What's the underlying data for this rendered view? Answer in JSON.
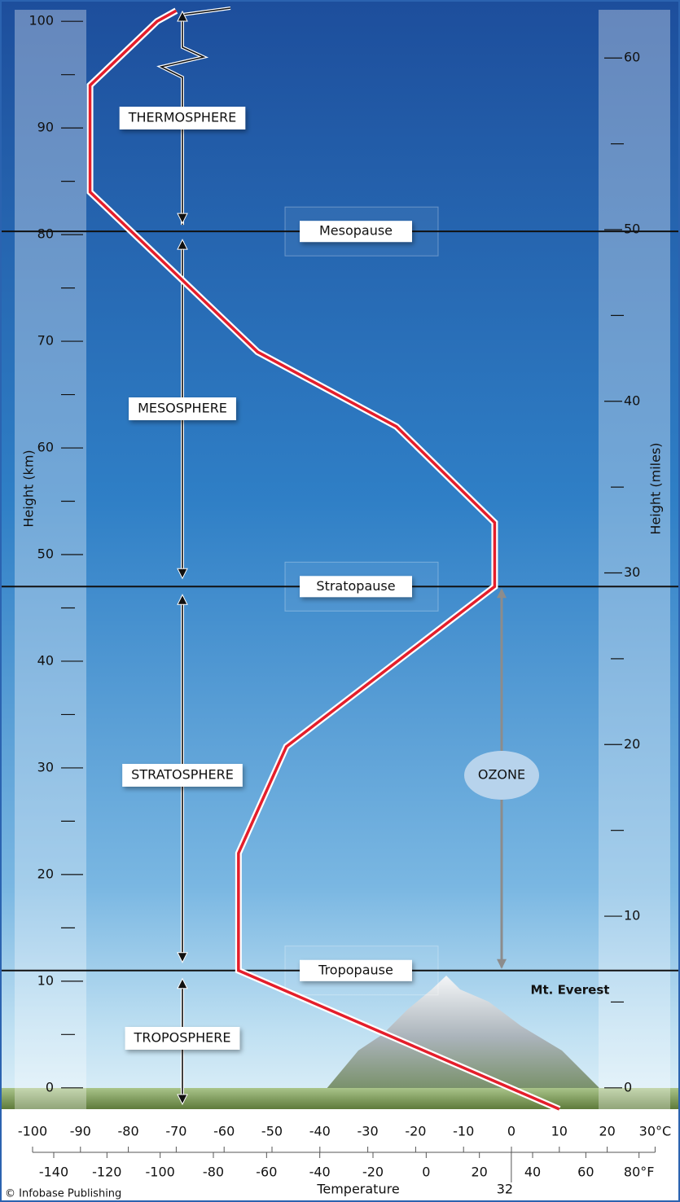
{
  "chart_data": {
    "type": "line",
    "x": [
      10,
      -57,
      -57,
      -47,
      -3.5,
      -3.5,
      -24,
      -53,
      -88,
      -88,
      -74,
      -70
    ],
    "values": [
      -2,
      11,
      22,
      32,
      47,
      53,
      62,
      69,
      84,
      94,
      100,
      101
    ],
    "color": "#e41e2b",
    "xlabel": "Temperature",
    "ylabel": "Height (km)",
    "y2label": "Height (miles)",
    "xlim": [
      -106.8,
      35.2
    ],
    "xticks": [
      -100,
      -90,
      -80,
      -70,
      -60,
      -50,
      -40,
      -30,
      -20,
      -10,
      0,
      10,
      20,
      {
        "value": 30,
        "label": "30°C"
      }
    ],
    "x2lim": [
      -160.2,
      95.4
    ],
    "x2ticks": [
      -140,
      -120,
      -100,
      -80,
      -60,
      -40,
      -20,
      0,
      20,
      40,
      60,
      {
        "value": 80,
        "label": "80°F"
      }
    ],
    "x2mark": 32,
    "ylim": [
      -2,
      102
    ],
    "yticks": [
      0,
      10,
      20,
      30,
      40,
      50,
      60,
      70,
      80,
      90,
      100
    ],
    "yminor": [
      5,
      15,
      25,
      35,
      45,
      55,
      65,
      75,
      85,
      95
    ],
    "y2lim": [
      -1.2427,
      63.3801
    ],
    "y2ticks": [
      0,
      10,
      20,
      30,
      40,
      50,
      60
    ],
    "y2minor": [
      5,
      15,
      25,
      35,
      45,
      55
    ],
    "layers": [
      "THERMOSPHERE",
      "MESOSPHERE",
      "STRATOSPHERE",
      "TROPOSPHERE"
    ],
    "boundaries": [
      {
        "label": "Mesopause",
        "height": 80.3
      },
      {
        "label": "Stratopause",
        "height": 47
      },
      {
        "label": "Tropopause",
        "height": 11
      }
    ],
    "ozone": {
      "label": "OZONE",
      "from": 11,
      "to": 47
    },
    "annotations": [
      "Mt. Everest"
    ],
    "credit": "© Infobase Publishing"
  }
}
